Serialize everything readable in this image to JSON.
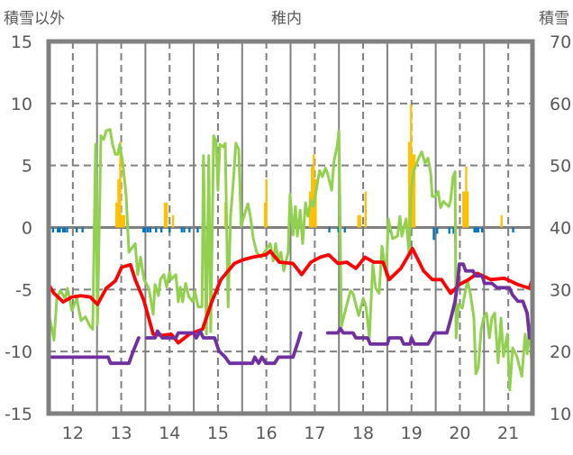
{
  "chart_data": {
    "type": "line",
    "title": "稚内",
    "ylabel_left": "積雪以外",
    "ylabel_right": "積雪",
    "ylim_left": [
      -15,
      15
    ],
    "ylim_right": [
      10,
      70
    ],
    "xlim": [
      11.5,
      21.5
    ],
    "x_ticks": [
      12,
      13,
      14,
      15,
      16,
      17,
      18,
      19,
      20,
      21
    ],
    "y_ticks_left": [
      15,
      10,
      5,
      0,
      -5,
      -10,
      -15
    ],
    "y_ticks_right": [
      70,
      60,
      50,
      40,
      30,
      20,
      10
    ],
    "grid": true,
    "colors": {
      "red": "#ff0000",
      "green": "#92d050",
      "purple": "#7030a0",
      "orange": "#ffc000",
      "blue": "#0070c0",
      "grid": "#808080"
    },
    "series": [
      {
        "name": "green-line",
        "axis": "left",
        "color": "#92d050",
        "x": [
          11.5,
          11.57,
          11.61,
          11.67,
          11.74,
          11.84,
          11.89,
          11.98,
          12.08,
          12.17,
          12.26,
          12.36,
          12.41,
          12.47,
          12.51,
          12.58,
          12.64,
          12.69,
          12.77,
          12.82,
          12.88,
          12.93,
          12.97,
          13.03,
          13.1,
          13.16,
          13.21,
          13.29,
          13.34,
          13.4,
          13.47,
          13.57,
          13.66,
          13.7,
          13.77,
          13.81,
          13.88,
          13.94,
          14.0,
          14.03,
          14.13,
          14.18,
          14.22,
          14.27,
          14.33,
          14.4,
          14.48,
          14.52,
          14.59,
          14.67,
          14.7,
          14.76,
          14.81,
          14.85,
          14.91,
          14.96,
          15.0,
          15.04,
          15.11,
          15.15,
          15.21,
          15.26,
          15.32,
          15.37,
          15.43,
          15.48,
          15.56,
          15.62,
          15.67,
          15.73,
          15.8,
          15.89,
          16.01,
          16.08,
          16.14,
          16.19,
          16.25,
          16.3,
          16.36,
          16.45,
          16.49,
          16.55,
          16.6,
          16.64,
          16.7,
          16.75,
          16.81,
          16.86,
          16.92,
          16.97,
          17.03,
          17.1,
          17.16,
          17.22,
          17.27,
          17.35,
          17.4,
          17.46,
          17.5,
          17.55,
          17.65,
          17.74,
          17.79,
          17.91,
          18.0,
          18.06,
          18.13,
          18.2,
          18.26,
          18.33,
          18.39,
          18.48,
          18.52,
          18.61,
          18.71,
          18.76,
          18.8,
          18.89,
          18.95,
          18.99,
          19.04,
          19.1,
          19.15,
          19.21,
          19.28,
          19.34,
          19.4,
          19.43,
          19.49,
          19.55,
          19.6,
          19.66,
          19.71,
          19.77,
          19.81,
          19.86,
          19.9,
          19.92,
          19.97,
          20.05,
          20.1,
          20.16,
          20.22,
          20.29,
          20.33,
          20.38,
          20.44,
          20.49,
          20.55,
          20.61,
          20.66,
          20.72,
          20.79,
          20.85,
          20.9,
          20.98,
          21.03,
          21.09,
          21.18,
          21.28,
          21.35,
          21.39,
          21.44,
          21.48
        ],
        "y": [
          -7.0,
          -8.2,
          -9.1,
          -5.7,
          -5.1,
          -5.7,
          -4.9,
          -6.7,
          -5.7,
          -7.5,
          -7.2,
          -8.0,
          -8.2,
          6.7,
          -7.8,
          7.4,
          7.1,
          7.8,
          7.9,
          6.7,
          5.9,
          5.9,
          6.7,
          5.2,
          2.7,
          -2.0,
          -1.7,
          -1.3,
          -3.8,
          -2.4,
          -4.2,
          -4.9,
          -7.0,
          -4.6,
          -5.5,
          -4.2,
          -3.8,
          -4.8,
          -3.6,
          -4.2,
          -3.8,
          -6.0,
          -4.8,
          -6.0,
          -4.5,
          -5.6,
          -6.0,
          -5.1,
          -6.4,
          -6.4,
          5.8,
          -8.6,
          5.8,
          -8.4,
          7.4,
          7.0,
          3.0,
          6.7,
          6.5,
          6.8,
          -6.4,
          0.9,
          3.8,
          6.8,
          6.3,
          0.1,
          1.2,
          1.9,
          0.9,
          -0.9,
          -2.0,
          -2.4,
          -1.7,
          -1.3,
          -2.7,
          -1.3,
          -2.7,
          -2.0,
          -3.5,
          -2.0,
          2.7,
          -0.6,
          1.7,
          -0.7,
          1.4,
          -1.3,
          2.0,
          0.9,
          2.2,
          1.7,
          3.0,
          4.6,
          4.1,
          4.8,
          4.3,
          3.0,
          5.4,
          6.5,
          7.8,
          -8.0,
          -6.4,
          -5.1,
          -5.3,
          -7.1,
          -5.7,
          -6.4,
          -8.9,
          -3.0,
          -4.9,
          -5.3,
          -1.5,
          -3.9,
          0.7,
          -0.9,
          -0.7,
          0.9,
          -0.7,
          0.7,
          -2.2,
          3.0,
          4.5,
          5.1,
          5.6,
          6.1,
          5.2,
          5.6,
          4.3,
          2.5,
          2.5,
          2.9,
          1.6,
          2.1,
          1.9,
          1.7,
          2.2,
          4.1,
          4.5,
          -8.9,
          -6.2,
          -6.5,
          -5.4,
          -4.3,
          -5.4,
          -7.3,
          -11.8,
          -11.3,
          -8.2,
          -7.3,
          -6.9,
          -8.9,
          -7.3,
          -6.9,
          -10.9,
          -7.3,
          -10.4,
          -8.6,
          -13.1,
          -9.7,
          -10.4,
          -12.0,
          -8.6,
          -10.2,
          -7.8,
          -10.7
        ]
      },
      {
        "name": "red-line",
        "axis": "left",
        "color": "#ff0000",
        "x": [
          11.5,
          11.61,
          11.8,
          11.98,
          12.17,
          12.36,
          12.51,
          12.69,
          12.88,
          13.01,
          13.19,
          13.29,
          13.47,
          13.66,
          13.85,
          14.03,
          14.18,
          14.41,
          14.68,
          14.87,
          15.06,
          15.34,
          15.52,
          15.71,
          15.99,
          16.08,
          16.27,
          16.55,
          16.73,
          16.92,
          17.11,
          17.29,
          17.48,
          17.66,
          17.85,
          18.04,
          18.22,
          18.41,
          18.54,
          18.78,
          19.02,
          19.25,
          19.43,
          19.62,
          19.81,
          19.99,
          20.18,
          20.36,
          20.64,
          20.92,
          21.2,
          21.44,
          21.5
        ],
        "y": [
          -4.6,
          -5.3,
          -6.0,
          -5.6,
          -5.5,
          -5.6,
          -6.2,
          -4.9,
          -4.3,
          -3.2,
          -3.0,
          -4.2,
          -5.9,
          -8.6,
          -8.7,
          -8.6,
          -9.3,
          -8.6,
          -8.2,
          -6.0,
          -4.2,
          -2.9,
          -2.6,
          -2.4,
          -2.2,
          -1.9,
          -2.8,
          -2.9,
          -3.8,
          -2.8,
          -2.4,
          -2.2,
          -2.9,
          -2.8,
          -3.3,
          -2.4,
          -2.8,
          -2.8,
          -4.2,
          -3.3,
          -1.7,
          -3.5,
          -4.2,
          -4.2,
          -5.3,
          -4.6,
          -4.2,
          -3.7,
          -4.2,
          -4.1,
          -4.6,
          -4.9,
          -4.1
        ]
      },
      {
        "name": "snow-depth",
        "axis": "right",
        "color": "#7030a0",
        "x": [
          11.5,
          12.73,
          12.78,
          13.16,
          13.25,
          13.36,
          null,
          13.53,
          13.7,
          13.75,
          13.85,
          14.13,
          14.18,
          14.5,
          14.55,
          14.63,
          14.7,
          14.93,
          15.02,
          15.15,
          15.24,
          15.71,
          15.76,
          15.84,
          15.91,
          15.99,
          16.17,
          16.25,
          16.55,
          16.64,
          16.71,
          null,
          17.27,
          17.48,
          17.53,
          17.59,
          17.79,
          17.85,
          18.09,
          18.15,
          18.5,
          18.54,
          18.78,
          18.84,
          18.97,
          19.0,
          19.06,
          19.34,
          19.47,
          19.62,
          19.73,
          19.81,
          19.9,
          19.95,
          19.99,
          20.07,
          20.12,
          20.27,
          20.33,
          20.46,
          20.51,
          20.66,
          20.77,
          21.02,
          21.09,
          21.2,
          21.3,
          21.39,
          21.44,
          21.5
        ],
        "y": [
          19.1,
          19.1,
          18.1,
          18.1,
          20.1,
          22.2,
          null,
          22.2,
          22.2,
          23.3,
          22.2,
          22.2,
          23.0,
          23.0,
          22.2,
          23.3,
          22.2,
          22.2,
          20.1,
          19.1,
          18.1,
          18.1,
          19.1,
          18.1,
          19.1,
          18.1,
          18.1,
          19.1,
          19.1,
          21.2,
          23.0,
          null,
          23.0,
          23.0,
          23.7,
          23.0,
          23.0,
          22.2,
          22.2,
          21.2,
          21.2,
          22.2,
          22.2,
          21.2,
          21.2,
          22.2,
          21.2,
          21.2,
          23.0,
          23.0,
          23.0,
          25.2,
          28.1,
          31.0,
          34.1,
          34.1,
          33.0,
          33.0,
          32.2,
          32.2,
          31.0,
          31.0,
          30.3,
          30.3,
          29.1,
          28.1,
          28.1,
          26.2,
          22.2,
          22.2
        ]
      }
    ],
    "bars": [
      {
        "name": "orange-bars",
        "axis": "left",
        "color": "#ffc000",
        "x": [
          12.9,
          12.94,
          12.98,
          13.02,
          13.06,
          13.9,
          13.94,
          14.07,
          15.15,
          15.97,
          16.0,
          16.9,
          16.94,
          16.98,
          17.02,
          17.9,
          17.94,
          18.05,
          18.95,
          18.99,
          19.02,
          19.06,
          20.07,
          20.11,
          20.13,
          20.16,
          20.86
        ],
        "y": [
          2.0,
          3.9,
          6.9,
          1.0,
          1.0,
          2.0,
          2.0,
          1.0,
          2.0,
          2.0,
          3.9,
          2.9,
          4.9,
          5.9,
          3.9,
          1.0,
          1.0,
          2.9,
          6.9,
          9.9,
          5.9,
          5.9,
          2.9,
          2.9,
          4.9,
          2.9,
          1.0
        ]
      },
      {
        "name": "blue-bars",
        "axis": "left",
        "color": "#0070c0",
        "x": [
          11.59,
          11.69,
          11.73,
          11.8,
          11.83,
          11.88,
          12.08,
          12.2,
          13.46,
          13.5,
          13.55,
          13.6,
          13.72,
          13.83,
          14.0,
          14.25,
          14.3,
          14.41,
          14.58,
          14.78,
          14.83,
          14.88,
          16.74,
          17.3,
          17.49,
          17.62,
          18.54,
          19.46,
          19.53,
          19.78,
          19.87,
          19.9,
          20.3,
          20.34,
          20.38,
          20.46,
          21.1
        ],
        "y": [
          -0.4,
          -0.4,
          -0.4,
          -0.4,
          -0.4,
          -0.4,
          -0.4,
          -0.4,
          -0.4,
          -0.4,
          -0.4,
          -0.4,
          -0.4,
          -0.4,
          -0.4,
          -0.4,
          -0.4,
          -0.4,
          -0.4,
          -0.4,
          -0.4,
          -0.4,
          -0.3,
          -0.4,
          -0.4,
          -0.4,
          -0.4,
          -1.0,
          -0.5,
          -0.5,
          -0.5,
          -1.2,
          -0.4,
          -0.4,
          -0.4,
          -0.4,
          -0.4
        ]
      }
    ]
  }
}
